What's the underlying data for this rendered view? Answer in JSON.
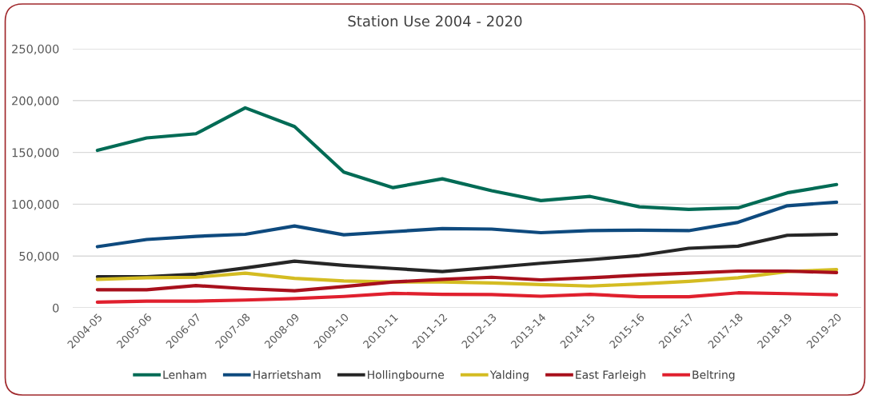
{
  "chart_data": {
    "type": "line",
    "title": "Station Use 2004 - 2020",
    "categories": [
      "2004-05",
      "2005-06",
      "2006-07",
      "2007-08",
      "2008-09",
      "2009-10",
      "2010-11",
      "2011-12",
      "2012-13",
      "2013-14",
      "2014-15",
      "2015-16",
      "2016-17",
      "2017-18",
      "2018-19",
      "2019-20"
    ],
    "series": [
      {
        "name": "Lenham",
        "color": "#006b55",
        "values": [
          152000,
          164000,
          168000,
          193000,
          175000,
          131000,
          116000,
          124500,
          113000,
          103500,
          107500,
          97500,
          95000,
          96500,
          111000,
          119000
        ]
      },
      {
        "name": "Harrietsham",
        "color": "#0e4a7e",
        "values": [
          59000,
          66000,
          69000,
          71000,
          79000,
          70500,
          73500,
          76500,
          76000,
          72500,
          74500,
          75000,
          74500,
          82500,
          98500,
          102000
        ]
      },
      {
        "name": "Hollingbourne",
        "color": "#262626",
        "values": [
          30000,
          30000,
          32500,
          38500,
          45000,
          41000,
          38000,
          35000,
          39000,
          43000,
          46500,
          50500,
          57500,
          59500,
          70000,
          71000
        ]
      },
      {
        "name": "Yalding",
        "color": "#d4bc22",
        "values": [
          27500,
          29000,
          29500,
          33500,
          28500,
          26000,
          25000,
          25000,
          24000,
          22500,
          21000,
          23000,
          25500,
          29000,
          35000,
          37000
        ]
      },
      {
        "name": "East Farleigh",
        "color": "#a8101c",
        "values": [
          17500,
          17500,
          21500,
          18500,
          16500,
          20500,
          25000,
          27500,
          29500,
          27000,
          29000,
          31500,
          33500,
          35500,
          35500,
          34000
        ]
      },
      {
        "name": "Beltring",
        "color": "#e0202e",
        "values": [
          5500,
          6500,
          6500,
          7500,
          9000,
          11000,
          14000,
          13000,
          12800,
          11200,
          13000,
          10700,
          10700,
          14500,
          13700,
          12600
        ]
      }
    ],
    "ylim": [
      0,
      250000
    ],
    "yticks": [
      {
        "value": 0,
        "label": "0"
      },
      {
        "value": 50000,
        "label": "50,000"
      },
      {
        "value": 100000,
        "label": "100,000"
      },
      {
        "value": 150000,
        "label": "150,000"
      },
      {
        "value": 200000,
        "label": "200,000"
      },
      {
        "value": 250000,
        "label": "250,000"
      }
    ],
    "grid": "y",
    "legend": "bottom",
    "marker": "none",
    "line_style": "solid"
  }
}
